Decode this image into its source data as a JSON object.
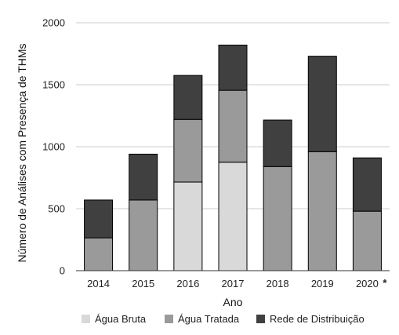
{
  "chart_data": {
    "type": "bar",
    "stacked": true,
    "title": "",
    "xlabel": "Ano",
    "ylabel": "Número de Análises com Presença de THMs",
    "ylim": [
      0,
      2000
    ],
    "yticks": [
      0,
      500,
      1000,
      1500,
      2000
    ],
    "grid": true,
    "legend_position": "bottom",
    "categories": [
      "2014",
      "2015",
      "2016",
      "2017",
      "2018",
      "2019",
      "2020"
    ],
    "category_annotations": {
      "2020": "*"
    },
    "series": [
      {
        "name": "Água Bruta",
        "color": "#d9d9d9",
        "values": [
          0,
          0,
          715,
          875,
          0,
          0,
          0
        ]
      },
      {
        "name": "Água Tratada",
        "color": "#9a9a9a",
        "values": [
          265,
          570,
          505,
          580,
          840,
          960,
          480
        ]
      },
      {
        "name": "Rede de Distribuição",
        "color": "#404040",
        "values": [
          305,
          370,
          355,
          365,
          375,
          770,
          430
        ]
      }
    ]
  }
}
